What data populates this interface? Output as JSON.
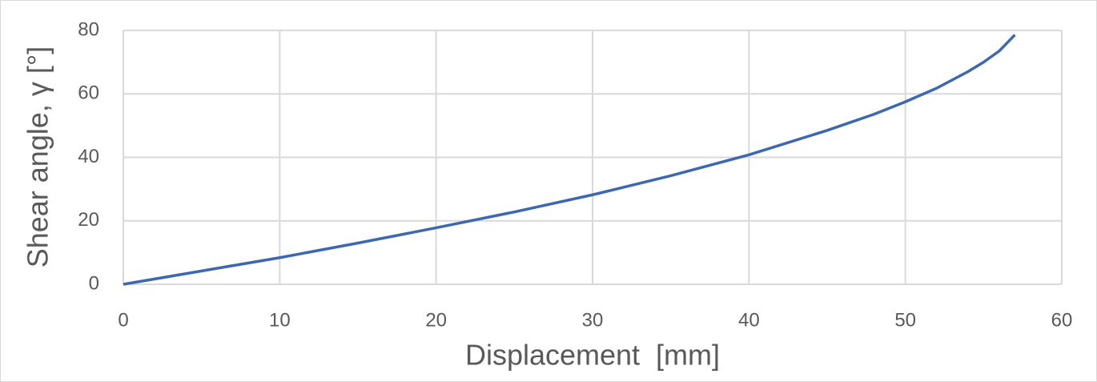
{
  "chart_data": {
    "type": "line",
    "xlabel": "Displacement  [mm]",
    "ylabel": "Shear angle, γ [°]",
    "x": [
      0,
      5,
      10,
      15,
      20,
      25,
      30,
      35,
      40,
      45,
      48,
      50,
      52,
      54,
      55,
      56,
      57
    ],
    "values": [
      0,
      4.2,
      8.4,
      13,
      17.8,
      22.8,
      28.2,
      34.2,
      40.8,
      48.5,
      53.6,
      57.5,
      61.8,
      67,
      70,
      73.5,
      78.6
    ],
    "color": "#3d68b0",
    "xlim": [
      0,
      60
    ],
    "xticks": [
      0,
      10,
      20,
      30,
      40,
      50,
      60
    ],
    "ylim": [
      0,
      80
    ],
    "yticks": [
      0,
      20,
      40,
      60,
      80
    ],
    "grid": true
  }
}
